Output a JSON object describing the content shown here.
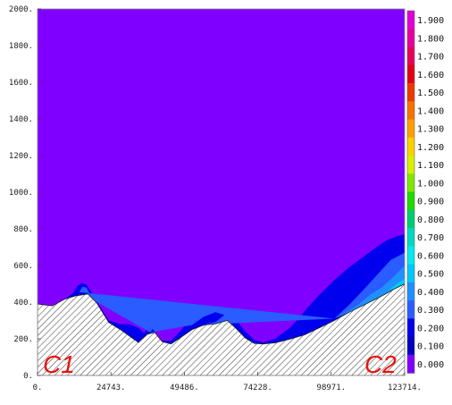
{
  "chart_data": {
    "type": "heatmap",
    "x_ticks": [
      "0.",
      "24743.",
      "49486.",
      "74228.",
      "98971.",
      "123714."
    ],
    "x_tick_values": [
      0,
      24743,
      49486,
      74228,
      98971,
      123714
    ],
    "xlim": [
      0,
      123714
    ],
    "y_ticks": [
      "0.",
      "200.",
      "400.",
      "600.",
      "800.",
      "1000.",
      "1200.",
      "1400.",
      "1600.",
      "1800.",
      "2000."
    ],
    "y_tick_values": [
      0,
      200,
      400,
      600,
      800,
      1000,
      1200,
      1400,
      1600,
      1800,
      2000
    ],
    "ylim": [
      0,
      2000
    ],
    "colorbar": {
      "labels": [
        "1.900",
        "1.800",
        "1.700",
        "1.600",
        "1.500",
        "1.400",
        "1.300",
        "1.200",
        "1.100",
        "1.000",
        "0.900",
        "0.800",
        "0.700",
        "0.600",
        "0.500",
        "0.400",
        "0.300",
        "0.200",
        "0.100",
        "0.000"
      ],
      "colors": [
        "#e000d8",
        "#e8009c",
        "#e8005a",
        "#e40010",
        "#ee3800",
        "#fa7000",
        "#ffa000",
        "#ffd000",
        "#d8f000",
        "#7ee800",
        "#22d800",
        "#00cc70",
        "#00d8c4",
        "#00eaf0",
        "#00c8ff",
        "#1e90ff",
        "#2a5cff",
        "#0000ee",
        "#0000c0",
        "#8000ff"
      ]
    },
    "background_color": "#8000ff",
    "terrain": {
      "x": [
        0,
        5000,
        9000,
        13000,
        17000,
        20000,
        24000,
        28000,
        31000,
        34000,
        37000,
        39500,
        42000,
        45000,
        48000,
        52000,
        56000,
        60000,
        64000,
        67000,
        70000,
        73000,
        76000,
        80000,
        85000,
        90000,
        95000,
        100000,
        105000,
        110000,
        115000,
        120000,
        123714
      ],
      "y": [
        390,
        380,
        415,
        435,
        445,
        395,
        290,
        250,
        215,
        180,
        225,
        235,
        185,
        172,
        205,
        250,
        275,
        282,
        300,
        255,
        205,
        175,
        172,
        178,
        198,
        222,
        260,
        300,
        345,
        385,
        425,
        470,
        500
      ]
    },
    "contours": [
      {
        "level": "0.100",
        "color": "#0000ee",
        "x": [
          0,
          5000,
          9000,
          12000,
          13500,
          15000,
          16500,
          18000,
          20000,
          24000,
          28000,
          31000,
          34000,
          36000,
          37000,
          38500,
          39500,
          41000,
          42000,
          45000,
          48000,
          51000,
          55000,
          59000,
          62000,
          64000,
          67000,
          70000,
          73000,
          76000,
          80000,
          85000,
          88000,
          91000,
          95000,
          100000,
          105000,
          110000,
          115000,
          118000,
          121000,
          123714,
          123714,
          120000,
          115000,
          110000,
          105000,
          100000,
          95000,
          90000,
          85000,
          80000,
          76000,
          73000,
          70000,
          67000,
          64000,
          60000,
          56000,
          52000,
          48000,
          45000,
          42000,
          39500,
          37000,
          34000,
          31000,
          28000,
          24000,
          20000,
          17000,
          13000,
          9000,
          5000,
          0
        ],
        "y": [
          390,
          380,
          415,
          450,
          490,
          505,
          495,
          460,
          405,
          300,
          280,
          280,
          260,
          230,
          265,
          265,
          240,
          195,
          190,
          190,
          240,
          300,
          345,
          375,
          365,
          345,
          300,
          240,
          195,
          180,
          200,
          260,
          310,
          370,
          440,
          520,
          590,
          650,
          710,
          740,
          760,
          770,
          500,
          470,
          425,
          385,
          345,
          300,
          260,
          222,
          198,
          178,
          172,
          175,
          205,
          255,
          300,
          282,
          275,
          250,
          205,
          172,
          185,
          235,
          225,
          180,
          215,
          250,
          290,
          395,
          445,
          435,
          415,
          380,
          390
        ]
      },
      {
        "level": "0.200",
        "color": "#2a5cff",
        "x": [
          14000,
          15200,
          16500,
          17500,
          15500,
          14000,
          38000,
          38800,
          39600,
          38800,
          38000,
          52000,
          56000,
          60000,
          63000,
          60000,
          56000,
          52000,
          100000,
          105000,
          110000,
          115000,
          119000,
          123714,
          123714,
          120000,
          115000,
          110000,
          105000,
          100000
        ],
        "y": [
          455,
          485,
          480,
          450,
          440,
          455,
          235,
          255,
          235,
          228,
          235,
          275,
          320,
          345,
          330,
          292,
          278,
          275,
          310,
          385,
          470,
          560,
          630,
          670,
          500,
          470,
          425,
          385,
          345,
          310
        ]
      },
      {
        "level": "0.300",
        "color": "#1e90ff",
        "x": [
          101000,
          104000,
          108000,
          112000,
          116000,
          120000,
          123714,
          123714,
          120000,
          116000,
          112000,
          108000,
          104000,
          101000
        ],
        "y": [
          315,
          345,
          385,
          440,
          480,
          540,
          600,
          500,
          470,
          435,
          400,
          370,
          340,
          315
        ]
      },
      {
        "level": "0.400",
        "color": "#00c8ff",
        "x": [
          118000,
          121000,
          123714,
          123714,
          121000,
          118000
        ],
        "y": [
          460,
          500,
          530,
          500,
          478,
          460
        ]
      }
    ],
    "annotations": [
      "C1",
      "C2"
    ]
  }
}
